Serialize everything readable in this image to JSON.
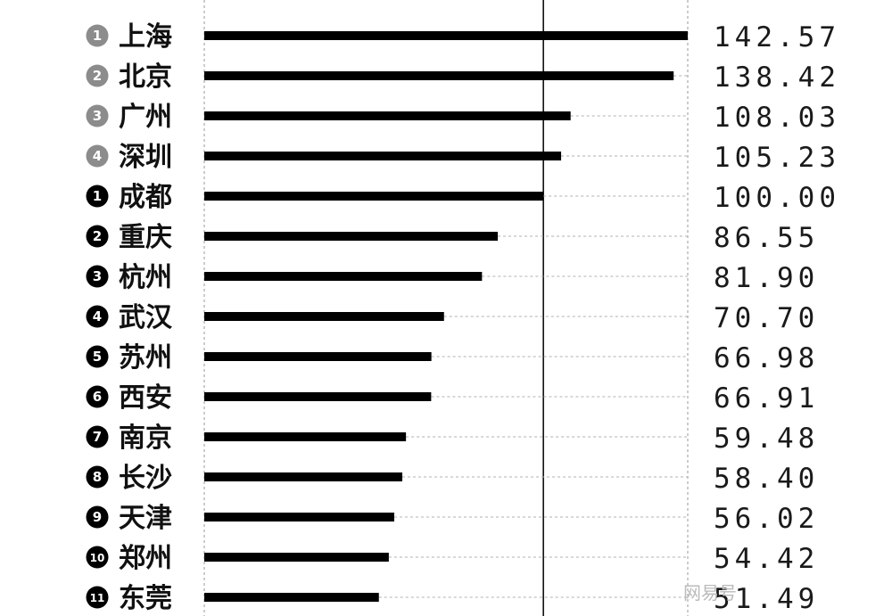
{
  "chart_data": {
    "type": "bar",
    "orientation": "horizontal",
    "title": "",
    "xlabel": "",
    "ylabel": "",
    "xlim": [
      0,
      142.57
    ],
    "reference_line": 100.0,
    "grid": true,
    "legend": "none",
    "bar_color": "#000000",
    "rows": [
      {
        "rank": "1",
        "rank_style": "gray",
        "city": "上海",
        "value": 142.57,
        "label": "142.57"
      },
      {
        "rank": "2",
        "rank_style": "gray",
        "city": "北京",
        "value": 138.42,
        "label": "138.42"
      },
      {
        "rank": "3",
        "rank_style": "gray",
        "city": "广州",
        "value": 108.03,
        "label": "108.03"
      },
      {
        "rank": "4",
        "rank_style": "gray",
        "city": "深圳",
        "value": 105.23,
        "label": "105.23"
      },
      {
        "rank": "1",
        "rank_style": "black",
        "city": "成都",
        "value": 100.0,
        "label": "100.00"
      },
      {
        "rank": "2",
        "rank_style": "black",
        "city": "重庆",
        "value": 86.55,
        "label": "86.55"
      },
      {
        "rank": "3",
        "rank_style": "black",
        "city": "杭州",
        "value": 81.9,
        "label": "81.90"
      },
      {
        "rank": "4",
        "rank_style": "black",
        "city": "武汉",
        "value": 70.7,
        "label": "70.70"
      },
      {
        "rank": "5",
        "rank_style": "black",
        "city": "苏州",
        "value": 66.98,
        "label": "66.98"
      },
      {
        "rank": "6",
        "rank_style": "black",
        "city": "西安",
        "value": 66.91,
        "label": "66.91"
      },
      {
        "rank": "7",
        "rank_style": "black",
        "city": "南京",
        "value": 59.48,
        "label": "59.48"
      },
      {
        "rank": "8",
        "rank_style": "black",
        "city": "长沙",
        "value": 58.4,
        "label": "58.40"
      },
      {
        "rank": "9",
        "rank_style": "black",
        "city": "天津",
        "value": 56.02,
        "label": "56.02"
      },
      {
        "rank": "10",
        "rank_style": "black",
        "city": "郑州",
        "value": 54.42,
        "label": "54.42"
      },
      {
        "rank": "11",
        "rank_style": "black",
        "city": "东莞",
        "value": 51.49,
        "label": "51.49"
      }
    ]
  },
  "watermark": {
    "text": "网易号",
    "color": "#bbbbbb"
  }
}
